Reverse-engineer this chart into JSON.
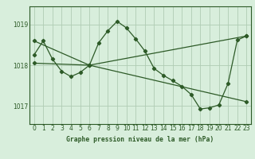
{
  "title": "Graphe pression niveau de la mer (hPa)",
  "bg_color": "#d8eedc",
  "line_color": "#2d5a27",
  "grid_color": "#b0ccb4",
  "border_color": "#2d5a27",
  "xlim": [
    -0.5,
    23.5
  ],
  "ylim": [
    1016.55,
    1019.45
  ],
  "yticks": [
    1017,
    1018,
    1019
  ],
  "xticks": [
    0,
    1,
    2,
    3,
    4,
    5,
    6,
    7,
    8,
    9,
    10,
    11,
    12,
    13,
    14,
    15,
    16,
    17,
    18,
    19,
    20,
    21,
    22,
    23
  ],
  "series1_x": [
    0,
    1,
    2,
    3,
    4,
    5,
    6,
    7,
    8,
    9,
    10,
    11,
    12,
    13,
    14,
    15,
    16,
    17,
    18,
    19,
    20,
    21,
    22,
    23
  ],
  "series1_y": [
    1018.25,
    1018.6,
    1018.15,
    1017.85,
    1017.72,
    1017.82,
    1018.0,
    1018.55,
    1018.85,
    1019.08,
    1018.92,
    1018.65,
    1018.35,
    1017.92,
    1017.75,
    1017.62,
    1017.48,
    1017.28,
    1016.92,
    1016.95,
    1017.02,
    1017.55,
    1018.62,
    1018.72
  ],
  "series2_x": [
    0,
    6,
    23
  ],
  "series2_y": [
    1018.6,
    1018.0,
    1017.1
  ],
  "series3_x": [
    0,
    6,
    23
  ],
  "series3_y": [
    1018.05,
    1018.0,
    1018.72
  ]
}
